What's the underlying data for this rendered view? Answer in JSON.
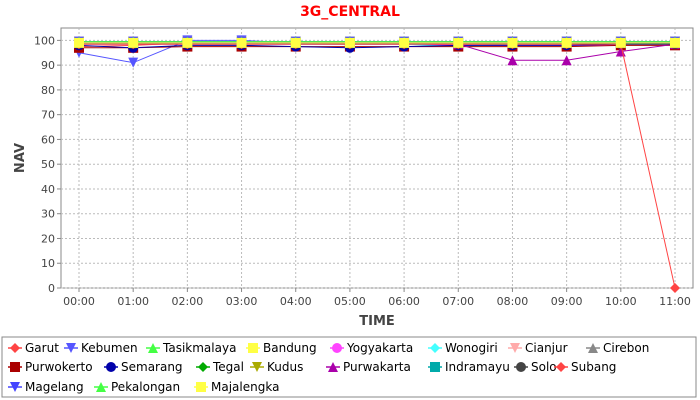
{
  "chart_data": {
    "type": "line",
    "title": "3G_CENTRAL",
    "xlabel": "TIME",
    "ylabel": "NAV",
    "x": [
      "00:00",
      "01:00",
      "02:00",
      "03:00",
      "04:00",
      "05:00",
      "06:00",
      "07:00",
      "08:00",
      "09:00",
      "10:00",
      "11:00"
    ],
    "ylim": [
      0,
      105
    ],
    "yticks": [
      0,
      10,
      20,
      30,
      40,
      50,
      60,
      70,
      80,
      90,
      100
    ],
    "grid": true,
    "legend_position": "bottom",
    "series": [
      {
        "name": "Garut",
        "color": "#ff4444",
        "marker": "diamond",
        "values": [
          97.5,
          98,
          99,
          99,
          98.5,
          98.5,
          98.5,
          98.5,
          98.5,
          98.5,
          98.5,
          98.5
        ]
      },
      {
        "name": "Kebumen",
        "color": "#5555ff",
        "marker": "tri-down",
        "values": [
          95,
          91,
          100,
          100,
          99,
          99,
          99,
          99,
          99.5,
          99.5,
          99.5,
          99.5
        ]
      },
      {
        "name": "Tasikmalaya",
        "color": "#44ff44",
        "marker": "tri-up",
        "values": [
          99,
          99,
          99.5,
          99.5,
          99.5,
          99.5,
          99.5,
          99.5,
          99.5,
          99.5,
          99.5,
          99.5
        ]
      },
      {
        "name": "Bandung",
        "color": "#ffff44",
        "marker": "square",
        "values": [
          99.5,
          99.5,
          99.5,
          99.5,
          99.5,
          99.5,
          99.5,
          99.5,
          99.5,
          99.5,
          99.5,
          99.5
        ]
      },
      {
        "name": "Yogyakarta",
        "color": "#ff44ff",
        "marker": "circle",
        "values": [
          98.5,
          98.5,
          98.5,
          98.5,
          98.5,
          98.5,
          98.5,
          98,
          98,
          98,
          98,
          98.5
        ]
      },
      {
        "name": "Wonogiri",
        "color": "#44ffff",
        "marker": "diamond",
        "values": [
          99,
          99,
          99,
          99,
          98.5,
          98.5,
          98.5,
          97.5,
          98.5,
          98.5,
          98.5,
          98.5
        ]
      },
      {
        "name": "Cianjur",
        "color": "#ffaaaa",
        "marker": "tri-down",
        "values": [
          99.5,
          99.5,
          99.5,
          99.5,
          99,
          99,
          99,
          99,
          99,
          99,
          99,
          99
        ]
      },
      {
        "name": "Cirebon",
        "color": "#888888",
        "marker": "tri-up",
        "values": [
          99.5,
          99.5,
          99.5,
          99.5,
          99.5,
          99.5,
          99.5,
          99.5,
          99.5,
          99.5,
          99.5,
          99.5
        ]
      },
      {
        "name": "Purwokerto",
        "color": "#aa0000",
        "marker": "square",
        "values": [
          97,
          97,
          97.5,
          97.5,
          97.5,
          97.5,
          97.5,
          97.5,
          97.5,
          97.5,
          98,
          98
        ]
      },
      {
        "name": "Semarang",
        "color": "#0000aa",
        "marker": "circle",
        "values": [
          98,
          97,
          98,
          98,
          97.5,
          97,
          97.5,
          98,
          98,
          98,
          98.5,
          98.5
        ]
      },
      {
        "name": "Tegal",
        "color": "#00aa00",
        "marker": "diamond",
        "values": [
          99,
          99,
          99,
          99,
          99,
          99,
          99,
          99,
          99,
          99,
          99,
          99
        ]
      },
      {
        "name": "Kudus",
        "color": "#aaaa00",
        "marker": "tri-down",
        "values": [
          99,
          99,
          99,
          99,
          99,
          99,
          99,
          99,
          99,
          99,
          99,
          99
        ]
      },
      {
        "name": "Purwakarta",
        "color": "#aa00aa",
        "marker": "tri-up",
        "values": [
          99,
          99,
          99,
          99,
          99,
          99,
          99,
          98.5,
          92,
          92,
          95.5,
          98.5
        ]
      },
      {
        "name": "Indramayu",
        "color": "#00aaaa",
        "marker": "square",
        "values": [
          99,
          99,
          99,
          99,
          99,
          99,
          99,
          99,
          99,
          99,
          99,
          99
        ]
      },
      {
        "name": "Solo",
        "color": "#444444",
        "marker": "circle",
        "values": [
          98.5,
          98.5,
          98.5,
          98.5,
          98.5,
          98.5,
          98.5,
          98.5,
          98.5,
          98.5,
          98.5,
          98.5
        ]
      },
      {
        "name": "Subang",
        "color": "#ff4444",
        "marker": "diamond",
        "values": [
          98.5,
          98.5,
          98.5,
          98.5,
          98.5,
          98.5,
          98.5,
          98.5,
          98.5,
          98.5,
          98.5,
          0
        ]
      },
      {
        "name": "Magelang",
        "color": "#4444ff",
        "marker": "tri-down",
        "values": [
          99.5,
          99.5,
          99.5,
          99.5,
          99.5,
          99.5,
          99.5,
          99.5,
          99.5,
          99.5,
          99.5,
          99.5
        ]
      },
      {
        "name": "Pekalongan",
        "color": "#44ff44",
        "marker": "tri-up",
        "values": [
          99.5,
          99.5,
          99.5,
          99.5,
          99.5,
          99.5,
          99.5,
          99.5,
          99.5,
          99.5,
          99.5,
          99.5
        ]
      },
      {
        "name": "Majalengka",
        "color": "#ffff44",
        "marker": "square",
        "values": [
          99,
          99,
          99,
          99,
          99,
          99,
          99,
          99,
          99,
          99,
          99,
          99
        ]
      }
    ]
  }
}
